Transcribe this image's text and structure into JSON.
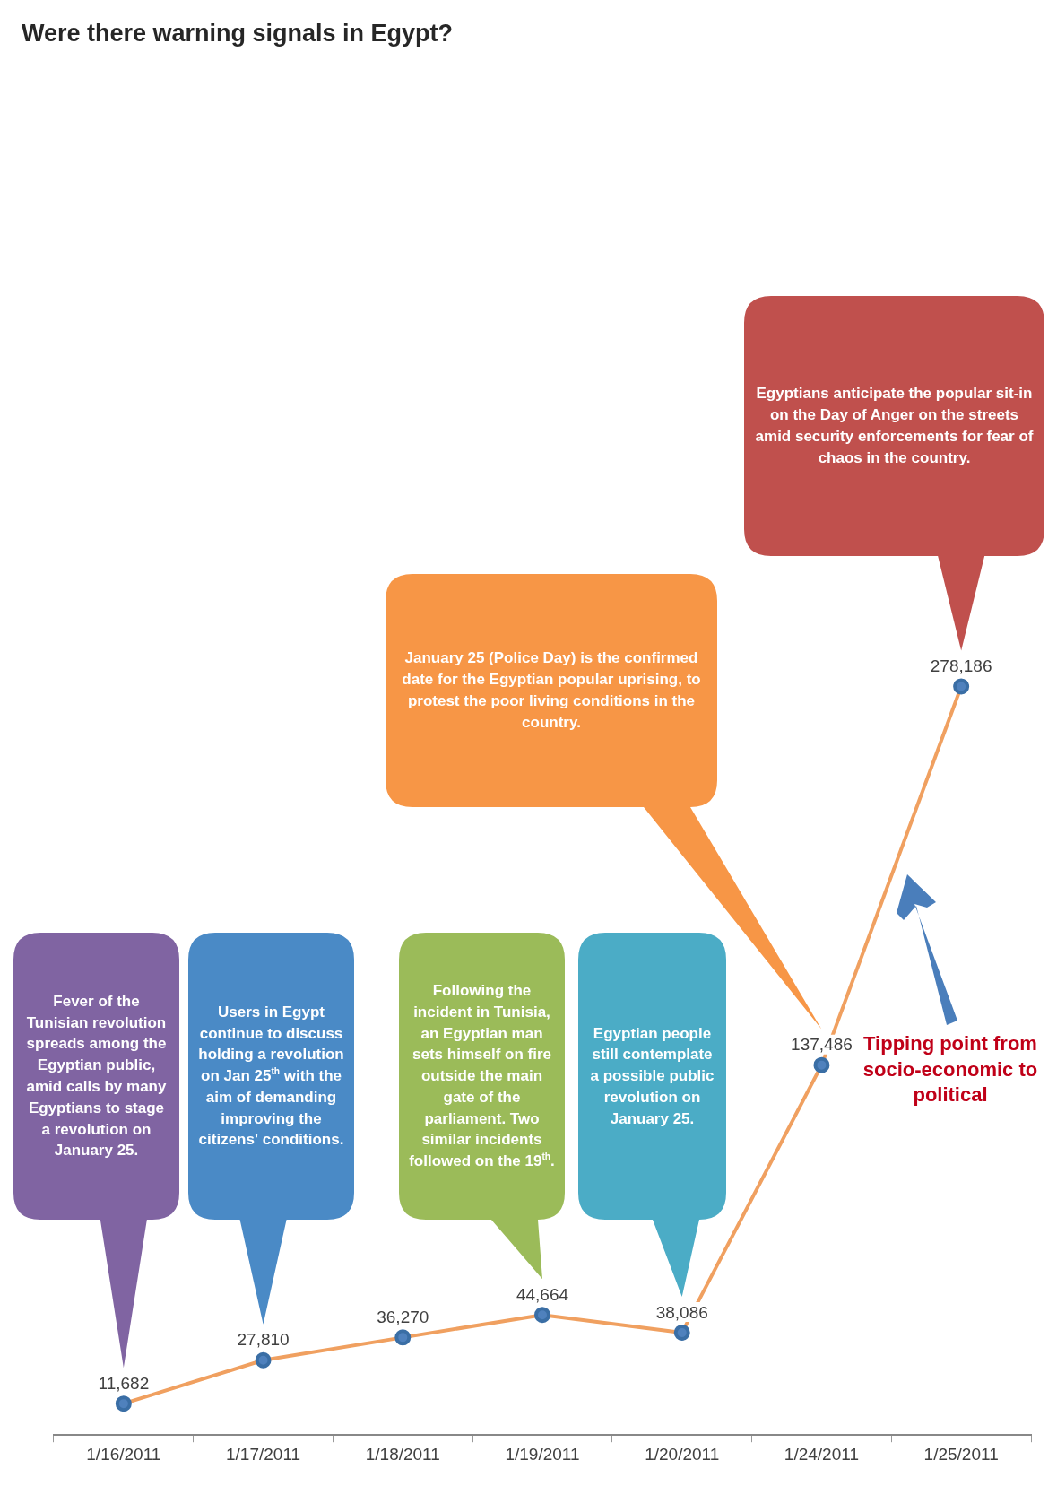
{
  "chart_data": {
    "type": "line",
    "title": "Were there warning signals in Egypt?",
    "categories": [
      "1/16/2011",
      "1/17/2011",
      "1/18/2011",
      "1/19/2011",
      "1/20/2011",
      "1/24/2011",
      "1/25/2011"
    ],
    "series": [
      {
        "color": "#f0a060",
        "values": [
          11682,
          27810,
          36270,
          44664,
          38086,
          137486,
          278186
        ],
        "value_labels": [
          "11,682",
          "27,810",
          "36,270",
          "44,664",
          "38,086",
          "137,486",
          "278,186"
        ]
      }
    ],
    "marker": "circle",
    "grid": false,
    "legend": false,
    "annotations": [
      "Fever of the Tunisian revolution spreads among the Egyptian public, amid calls by many Egyptians to stage a revolution on January 25.",
      "Users in Egypt continue to discuss holding a revolution on Jan 25$^{th}$ with the aim of demanding improving the citizens' conditions.",
      "Following the incident in Tunisia, an Egyptian man sets himself on fire outside the main gate of the parliament. Two similar incidents followed on the 19$^{th}$.",
      "Egyptian people still contemplate a possible public revolution on January 25.",
      "January 25 (Police Day) is the confirmed date for the Egyptian popular uprising, to protest the poor living conditions in the country.",
      "Egyptians anticipate the popular sit-in on the Day of Anger on the streets amid security enforcements for fear of chaos in the country.",
      "Tipping point from socio-economic to political"
    ]
  }
}
